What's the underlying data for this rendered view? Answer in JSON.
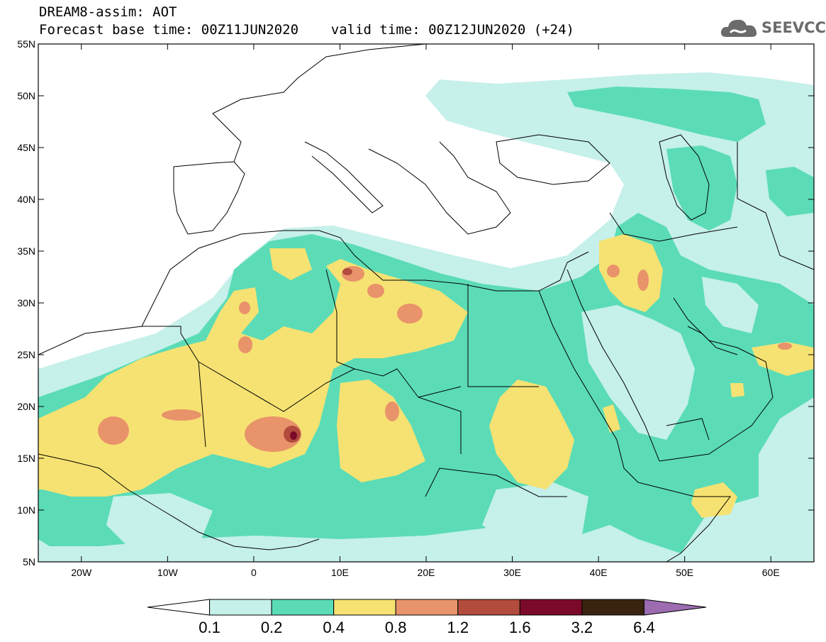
{
  "header": {
    "line1": "DREAM8-assim: AOT",
    "line2": "Forecast base time: 00Z11JUN2020    valid time: 00Z12JUN2020 (+24)"
  },
  "logo": {
    "text": "SEEVCCC",
    "icon": "cloud-icon"
  },
  "map": {
    "lon_range": [
      -25,
      65
    ],
    "lat_range": [
      5,
      55
    ],
    "lat_ticks": [
      {
        "value": 55,
        "label": "55N"
      },
      {
        "value": 50,
        "label": "50N"
      },
      {
        "value": 45,
        "label": "45N"
      },
      {
        "value": 40,
        "label": "40N"
      },
      {
        "value": 35,
        "label": "35N"
      },
      {
        "value": 30,
        "label": "30N"
      },
      {
        "value": 25,
        "label": "25N"
      },
      {
        "value": 20,
        "label": "20N"
      },
      {
        "value": 15,
        "label": "15N"
      },
      {
        "value": 10,
        "label": "10N"
      },
      {
        "value": 5,
        "label": "5N"
      }
    ],
    "lon_ticks": [
      {
        "value": -20,
        "label": "20W"
      },
      {
        "value": -10,
        "label": "10W"
      },
      {
        "value": 0,
        "label": "0"
      },
      {
        "value": 10,
        "label": "10E"
      },
      {
        "value": 20,
        "label": "20E"
      },
      {
        "value": 30,
        "label": "30E"
      },
      {
        "value": 40,
        "label": "40E"
      },
      {
        "value": 50,
        "label": "50E"
      },
      {
        "value": 60,
        "label": "60E"
      }
    ]
  },
  "colorbar": {
    "levels": [
      "0.1",
      "0.2",
      "0.4",
      "0.8",
      "1.2",
      "1.6",
      "3.2",
      "6.4"
    ],
    "colors": [
      "#ffffff",
      "#c6f0ea",
      "#5bdcb7",
      "#f6e272",
      "#e9936a",
      "#b24c3d",
      "#7b0a2a",
      "#3a2410",
      "#9c6bb0"
    ]
  }
}
